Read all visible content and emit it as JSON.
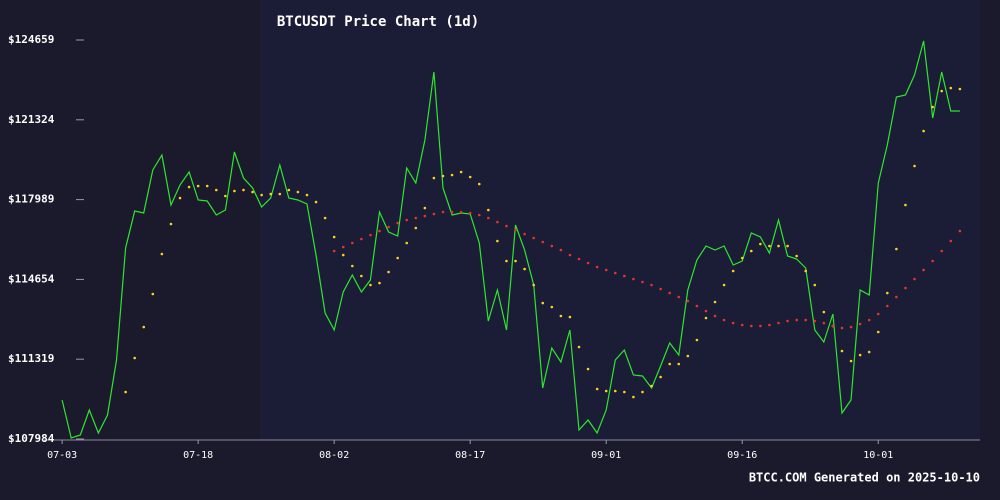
{
  "chart_data": {
    "type": "line",
    "title": "BTCUSDT Price Chart (1d)",
    "footer": "BTCC.COM Generated on 2025-10-10",
    "x": [
      "07-03",
      "07-04",
      "07-05",
      "07-06",
      "07-07",
      "07-08",
      "07-09",
      "07-10",
      "07-11",
      "07-12",
      "07-13",
      "07-14",
      "07-15",
      "07-16",
      "07-17",
      "07-18",
      "07-19",
      "07-20",
      "07-21",
      "07-22",
      "07-23",
      "07-24",
      "07-25",
      "07-26",
      "07-27",
      "07-28",
      "07-29",
      "07-30",
      "07-31",
      "08-01",
      "08-02",
      "08-03",
      "08-04",
      "08-05",
      "08-06",
      "08-07",
      "08-08",
      "08-09",
      "08-10",
      "08-11",
      "08-12",
      "08-13",
      "08-14",
      "08-15",
      "08-16",
      "08-17",
      "08-18",
      "08-19",
      "08-20",
      "08-21",
      "08-22",
      "08-23",
      "08-24",
      "08-25",
      "08-26",
      "08-27",
      "08-28",
      "08-29",
      "08-30",
      "08-31",
      "09-01",
      "09-02",
      "09-03",
      "09-04",
      "09-05",
      "09-06",
      "09-07",
      "09-08",
      "09-09",
      "09-10",
      "09-11",
      "09-12",
      "09-13",
      "09-14",
      "09-15",
      "09-16",
      "09-17",
      "09-18",
      "09-19",
      "09-20",
      "09-21",
      "09-22",
      "09-23",
      "09-24",
      "09-25",
      "09-26",
      "09-27",
      "09-28",
      "09-29",
      "09-30",
      "10-01",
      "10-02",
      "10-03",
      "10-04",
      "10-05",
      "10-06",
      "10-07",
      "10-08",
      "10-09",
      "10-10"
    ],
    "xlim": [
      "07-01",
      "10-12"
    ],
    "xticks": [
      "07-03",
      "07-18",
      "08-02",
      "08-17",
      "09-01",
      "09-16",
      "10-01"
    ],
    "ylim": [
      107984,
      124659
    ],
    "yticks": [
      {
        "value": 107984,
        "label": "$107984"
      },
      {
        "value": 111319,
        "label": "$111319"
      },
      {
        "value": 114654,
        "label": "$114654"
      },
      {
        "value": 117989,
        "label": "$117989"
      },
      {
        "value": 121324,
        "label": "$121324"
      },
      {
        "value": 124659,
        "label": "$124659"
      }
    ],
    "series": [
      {
        "mark": "line",
        "color": "#2ee62e",
        "values": [
          109614,
          108026,
          108151,
          109196,
          108235,
          108987,
          111285,
          115966,
          117512,
          117429,
          119226,
          119852,
          117763,
          118599,
          119142,
          117972,
          117930,
          117345,
          117554,
          119978,
          118891,
          118473,
          117679,
          118055,
          119434,
          118055,
          117972,
          117805,
          115673,
          113250,
          112539,
          114127,
          114838,
          114127,
          114629,
          117470,
          116635,
          116467,
          119309,
          118682,
          120479,
          123321,
          118473,
          117345,
          117429,
          117387,
          116175,
          112915,
          114211,
          112539,
          116927,
          115882,
          114420,
          110115,
          111787,
          111202,
          112539,
          108360,
          108778,
          108235,
          109196,
          111285,
          111703,
          110659,
          110617,
          110115,
          111035,
          111996,
          111494,
          114211,
          115464,
          116049,
          115882,
          116049,
          115255,
          115423,
          116593,
          116426,
          115757,
          117136,
          115632,
          115506,
          115130,
          112539,
          112038,
          113208,
          109071,
          109614,
          114211,
          114002,
          118682,
          120270,
          122276,
          122360,
          123196,
          124616,
          121399,
          123321,
          121691,
          121691
        ]
      },
      {
        "mark": "dot",
        "color": "#ffd21f",
        "values": [
          null,
          null,
          null,
          null,
          null,
          null,
          null,
          109948,
          111369,
          112664,
          114044,
          115715,
          116969,
          118055,
          118515,
          118557,
          118557,
          118390,
          118139,
          118348,
          118390,
          118306,
          118181,
          118223,
          118223,
          118390,
          118306,
          118181,
          117888,
          117220,
          116426,
          115673,
          115214,
          114796,
          114420,
          114503,
          114963,
          115548,
          116175,
          116802,
          117637,
          118891,
          118975,
          119017,
          119142,
          118933,
          118640,
          117554,
          116258,
          115423,
          115423,
          115088,
          114420,
          113667,
          113500,
          113124,
          113082,
          111829,
          110909,
          110074,
          109990,
          109990,
          109948,
          109739,
          109948,
          110199,
          110575,
          111118,
          111118,
          111453,
          112121,
          113041,
          113709,
          114420,
          115005,
          115548,
          115841,
          116133,
          116049,
          116049,
          116049,
          115632,
          115005,
          114420,
          113291,
          112706,
          111662,
          111244,
          111494,
          111620,
          112456,
          114085,
          115924,
          117763,
          119393,
          120855,
          121858,
          122527,
          122652,
          122611
        ]
      },
      {
        "mark": "dot",
        "color": "#e8322a",
        "values": [
          null,
          null,
          null,
          null,
          null,
          null,
          null,
          null,
          null,
          null,
          null,
          null,
          null,
          null,
          null,
          null,
          null,
          null,
          null,
          null,
          null,
          null,
          null,
          null,
          null,
          null,
          null,
          null,
          null,
          null,
          115841,
          116008,
          116175,
          116342,
          116509,
          116676,
          116843,
          117011,
          117136,
          117220,
          117303,
          117387,
          117470,
          117470,
          117470,
          117429,
          117345,
          117220,
          117052,
          116885,
          116718,
          116551,
          116384,
          116217,
          116049,
          115882,
          115673,
          115506,
          115339,
          115172,
          115047,
          114921,
          114796,
          114670,
          114545,
          114420,
          114253,
          114085,
          113918,
          113751,
          113542,
          113333,
          113124,
          112957,
          112832,
          112748,
          112706,
          112706,
          112748,
          112832,
          112915,
          112957,
          112957,
          112915,
          112832,
          112706,
          112623,
          112664,
          112790,
          112957,
          113208,
          113542,
          113918,
          114294,
          114670,
          115047,
          115423,
          115841,
          116258,
          116676
        ]
      }
    ]
  }
}
